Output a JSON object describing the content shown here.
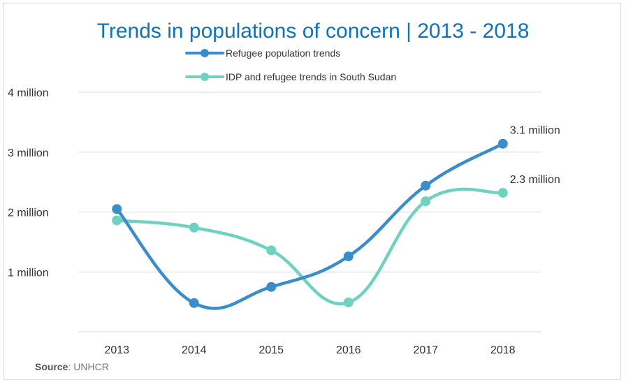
{
  "chart_data": {
    "type": "line",
    "title": "Trends in populations of concern | 2013 - 2018",
    "categories": [
      "2013",
      "2014",
      "2015",
      "2016",
      "2017",
      "2018"
    ],
    "y_tick_labels": [
      "1 million",
      "2 million",
      "3 million",
      "4 million"
    ],
    "y_ticks": [
      1,
      2,
      3,
      4
    ],
    "ylim": [
      0,
      4
    ],
    "grid": true,
    "legend_placement": "top",
    "series": [
      {
        "name": "Refugee population trends",
        "color": "#3a8dcb",
        "values": [
          2.05,
          0.48,
          0.75,
          1.26,
          2.44,
          3.14
        ],
        "end_label": "3.1 million"
      },
      {
        "name": "IDP and refugee trends in South Sudan",
        "color": "#6fd2c1",
        "values": [
          1.86,
          1.74,
          1.36,
          0.49,
          2.18,
          2.32
        ],
        "end_label": "2.3 million"
      }
    ]
  },
  "source": {
    "label": "Source",
    "separator": ": ",
    "value": "UNHCR"
  }
}
